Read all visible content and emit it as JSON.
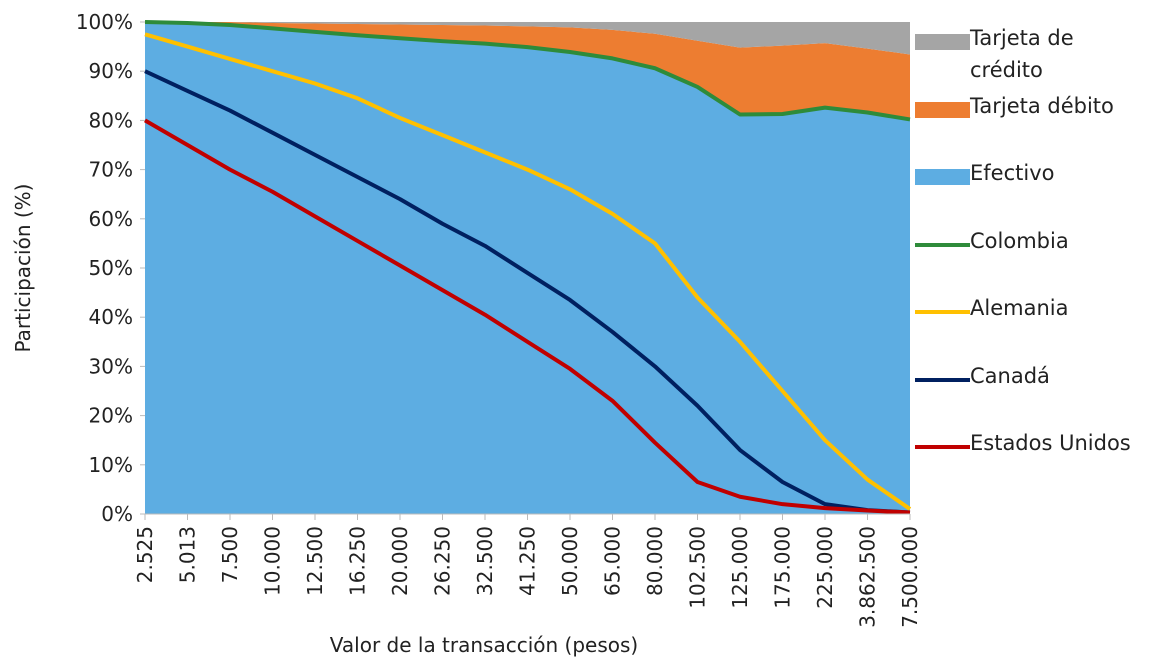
{
  "chart_data": {
    "type": "area",
    "y_label": "Participación (%)",
    "x_label": "Valor de la transacción (pesos)",
    "categories": [
      "2.525",
      "5.013",
      "7.500",
      "10.000",
      "12.500",
      "16.250",
      "20.000",
      "26.250",
      "32.500",
      "41.250",
      "50.000",
      "65.000",
      "80.000",
      "102.500",
      "125.000",
      "175.000",
      "225.000",
      "3.862.500",
      "7.500.000"
    ],
    "ylim": [
      0,
      100
    ],
    "yticks": [
      {
        "value": 0,
        "label": "0%"
      },
      {
        "value": 10,
        "label": "10%"
      },
      {
        "value": 20,
        "label": "20%"
      },
      {
        "value": 30,
        "label": "30%"
      },
      {
        "value": 40,
        "label": "40%"
      },
      {
        "value": 50,
        "label": "50%"
      },
      {
        "value": 60,
        "label": "60%"
      },
      {
        "value": 70,
        "label": "70%"
      },
      {
        "value": 80,
        "label": "80%"
      },
      {
        "value": 90,
        "label": "90%"
      },
      {
        "value": 100,
        "label": "100%"
      }
    ],
    "series": [
      {
        "name": "Tarjeta de crédito",
        "type": "area",
        "color": "#a5a5a5",
        "values": [
          0,
          0,
          0,
          0.2,
          0.3,
          0.4,
          0.5,
          0.6,
          0.7,
          0.9,
          1.1,
          1.6,
          2.4,
          3.8,
          5.2,
          4.8,
          4.3,
          5.4,
          6.6
        ]
      },
      {
        "name": "Tarjeta débito",
        "type": "area",
        "color": "#ed7d31",
        "values": [
          0,
          0.2,
          0.6,
          1.1,
          1.7,
          2.3,
          2.8,
          3.3,
          3.7,
          4.2,
          5.0,
          5.8,
          7.0,
          9.4,
          13.6,
          13.9,
          13.1,
          13.0,
          13.2
        ]
      },
      {
        "name": "Efectivo",
        "type": "area",
        "color": "#5dade2",
        "values": [
          100,
          99.8,
          99.4,
          98.7,
          98.0,
          97.3,
          96.7,
          96.1,
          95.6,
          94.9,
          93.9,
          92.6,
          90.6,
          86.8,
          81.2,
          81.3,
          82.6,
          81.6,
          80.2
        ]
      },
      {
        "name": "Colombia",
        "type": "line",
        "color": "#2e8b3a",
        "values": [
          100,
          99.8,
          99.4,
          98.7,
          98.0,
          97.3,
          96.7,
          96.1,
          95.6,
          94.9,
          93.9,
          92.6,
          90.6,
          86.8,
          81.2,
          81.3,
          82.6,
          81.6,
          80.2
        ]
      },
      {
        "name": "Alemania",
        "type": "line",
        "color": "#ffc000",
        "values": [
          97.5,
          95,
          92.5,
          90,
          87.5,
          84.5,
          80.5,
          77,
          73.5,
          70,
          66,
          61,
          55,
          44,
          35,
          25,
          15,
          7,
          1
        ]
      },
      {
        "name": "Canadá",
        "type": "line",
        "color": "#002060",
        "values": [
          90,
          86,
          82,
          77.5,
          73,
          68.5,
          64,
          59,
          54.5,
          49,
          43.5,
          37,
          30,
          22,
          13,
          6.5,
          2,
          0.8,
          0.3
        ]
      },
      {
        "name": "Estados Unidos",
        "type": "line",
        "color": "#c00000",
        "values": [
          80,
          75,
          70,
          65.5,
          60.5,
          55.5,
          50.5,
          45.5,
          40.5,
          35,
          29.5,
          23,
          14.5,
          6.5,
          3.5,
          2,
          1.2,
          0.7,
          0.3
        ]
      }
    ]
  }
}
